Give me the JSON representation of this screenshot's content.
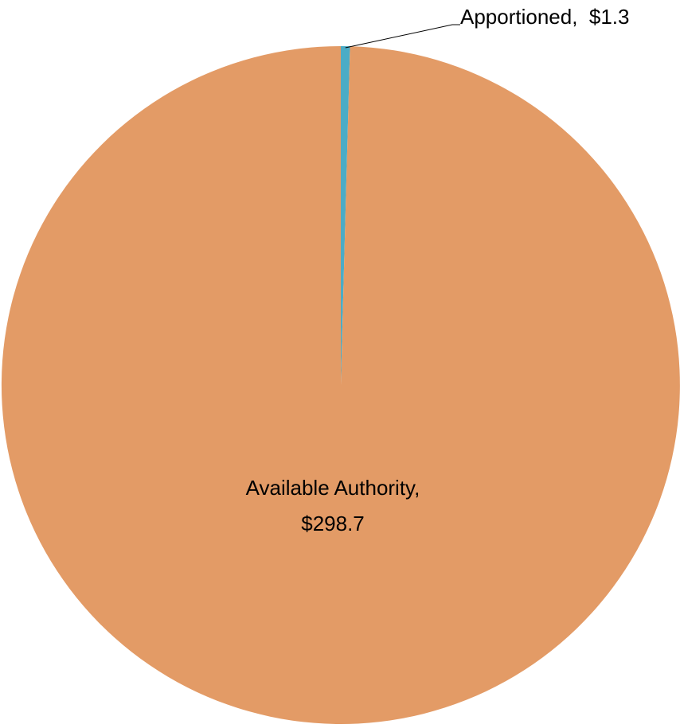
{
  "chart_data": {
    "type": "pie",
    "title": "",
    "categories": [
      "Apportioned",
      "Available Authority"
    ],
    "values": [
      1.3,
      298.7
    ],
    "colors": [
      "#4BACC6",
      "#E39B66"
    ],
    "slice_labels": [
      {
        "name": "Apportioned",
        "value": "$1.3",
        "text": "Apportioned,  $1.3",
        "lines": [
          "Apportioned,  $1.3"
        ]
      },
      {
        "name": "Available Authority",
        "value": "$298.7",
        "text": "Available Authority, $298.7",
        "lines": [
          "Available Authority,",
          "$298.7"
        ]
      }
    ],
    "legend": "none",
    "start_angle": "12 o'clock",
    "direction": "clockwise"
  }
}
